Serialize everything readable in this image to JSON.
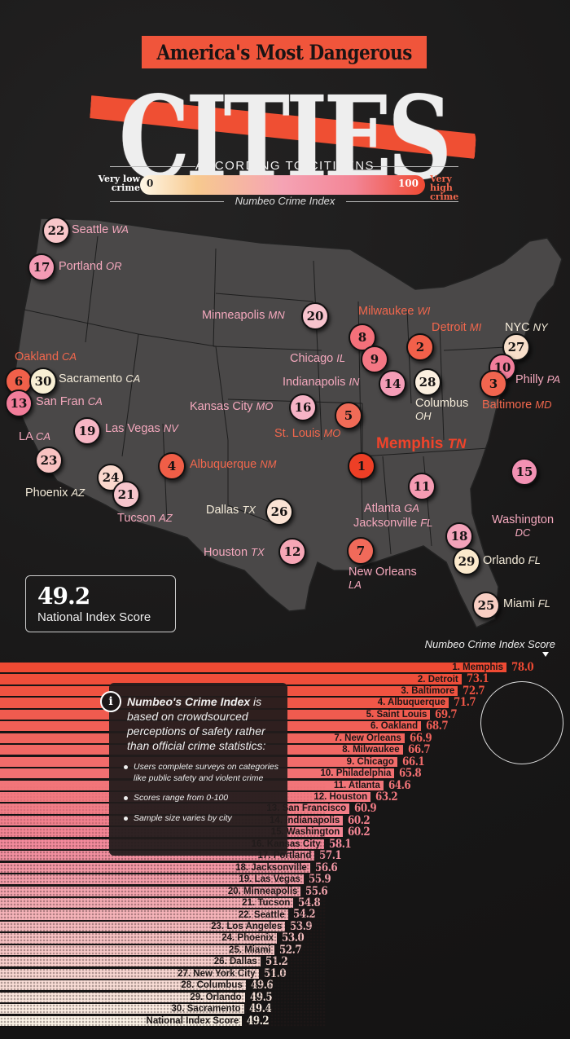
{
  "header": {
    "title_top": "America's Most Dangerous",
    "title_main": "CITIES",
    "subtitle": "ACCORDING TO CITIZENS",
    "scale": {
      "low_label": "Very low crime",
      "low_value": "0",
      "high_value": "100",
      "high_label": "Very high crime",
      "caption": "Numbeo Crime Index"
    }
  },
  "map": {
    "national_box": {
      "value": "49.2",
      "caption": "National Index Score"
    },
    "cities": [
      {
        "rank": "22",
        "name": "Seattle",
        "state": "WA"
      },
      {
        "rank": "17",
        "name": "Portland",
        "state": "OR"
      },
      {
        "rank": "20",
        "name": "Minneapolis",
        "state": "MN"
      },
      {
        "rank": "8",
        "name": "Milwaukee",
        "state": "WI"
      },
      {
        "rank": "2",
        "name": "Detroit",
        "state": "MI"
      },
      {
        "rank": "27",
        "name": "NYC",
        "state": "NY"
      },
      {
        "rank": "6",
        "name": "Oakland",
        "state": "CA"
      },
      {
        "rank": "30",
        "name": "Sacramento",
        "state": "CA"
      },
      {
        "rank": "13",
        "name": "San Fran",
        "state": "CA"
      },
      {
        "rank": "9",
        "name": "Chicago",
        "state": "IL"
      },
      {
        "rank": "14",
        "name": "Indianapolis",
        "state": "IN"
      },
      {
        "rank": "28",
        "name": "Columbus",
        "state": "OH"
      },
      {
        "rank": "10",
        "name": "Philly",
        "state": "PA"
      },
      {
        "rank": "3",
        "name": "Baltimore",
        "state": "MD"
      },
      {
        "rank": "16",
        "name": "Kansas City",
        "state": "MO"
      },
      {
        "rank": "5",
        "name": "St. Louis",
        "state": "MO"
      },
      {
        "rank": "19",
        "name": "Las Vegas",
        "state": "NV"
      },
      {
        "rank": "23",
        "name": "LA",
        "state": "CA"
      },
      {
        "rank": "1",
        "name": "Memphis",
        "state": "TN"
      },
      {
        "rank": "4",
        "name": "Albuquerque",
        "state": "NM"
      },
      {
        "rank": "24",
        "name": "Phoenix",
        "state": "AZ"
      },
      {
        "rank": "21",
        "name": "Tucson",
        "state": "AZ"
      },
      {
        "rank": "11",
        "name": "Atlanta",
        "state": "GA"
      },
      {
        "rank": "15",
        "name": "Washington",
        "state": "DC"
      },
      {
        "rank": "26",
        "name": "Dallas",
        "state": "TX"
      },
      {
        "rank": "18",
        "name": "Jacksonville",
        "state": "FL"
      },
      {
        "rank": "12",
        "name": "Houston",
        "state": "TX"
      },
      {
        "rank": "7",
        "name": "New Orleans",
        "state": "LA"
      },
      {
        "rank": "29",
        "name": "Orlando",
        "state": "FL"
      },
      {
        "rank": "25",
        "name": "Miami",
        "state": "FL"
      }
    ]
  },
  "bars_header": "Numbeo Crime Index Score",
  "info": {
    "title_bold": "Numbeo's Crime Index",
    "title_rest": " is based on crowdsourced perceptions of safety rather than official crime statistics:",
    "bullets": [
      "Users complete surveys on categories like public safety and violent crime",
      "Scores range from 0-100",
      "Sample size varies by city"
    ]
  },
  "chart_data": {
    "type": "bar",
    "title": "America's Most Dangerous Cities According to Citizens",
    "xlabel": "",
    "ylabel": "Numbeo Crime Index Score",
    "ylim": [
      0,
      100
    ],
    "orientation": "horizontal",
    "categories": [
      "1. Memphis",
      "2. Detroit",
      "3. Baltimore",
      "4. Albuquerque",
      "5. Saint Louis",
      "6. Oakland",
      "7. New Orleans",
      "8. Milwaukee",
      "9. Chicago",
      "10. Philadelphia",
      "11. Atlanta",
      "12. Houston",
      "13. San Francisco",
      "14. Indianapolis",
      "15. Washington",
      "16. Kansas City",
      "17. Portland",
      "18. Jacksonville",
      "19. Las Vegas",
      "20. Minneapolis",
      "21. Tucson",
      "22. Seattle",
      "23. Los Angeles",
      "24. Phoenix",
      "25. Miami",
      "26. Dallas",
      "27. New York City",
      "28. Columbus",
      "29. Orlando",
      "30. Sacramento",
      "National Index Score"
    ],
    "values": [
      78.0,
      73.1,
      72.7,
      71.7,
      69.7,
      68.7,
      66.9,
      66.7,
      66.1,
      65.8,
      64.6,
      63.2,
      60.9,
      60.2,
      60.2,
      58.1,
      57.1,
      56.6,
      55.9,
      55.6,
      54.8,
      54.2,
      53.9,
      53.0,
      52.7,
      51.2,
      51.0,
      49.6,
      49.5,
      49.4,
      49.2
    ],
    "value_labels": [
      "78.0",
      "73.1",
      "72.7",
      "71.7",
      "69.7",
      "68.7",
      "66.9",
      "66.7",
      "66.1",
      "65.8",
      "64.6",
      "63.2",
      "60.9",
      "60.2",
      "60.2",
      "58.1",
      "57.1",
      "56.6",
      "55.9",
      "55.6",
      "54.8",
      "54.2",
      "53.9",
      "53.0",
      "52.7",
      "51.2",
      "51.0",
      "49.6",
      "49.5",
      "49.4",
      "49.2"
    ],
    "colors": {
      "high": "#ef4a33",
      "mid": "#f48a9c",
      "low": "#fbf3e6"
    }
  }
}
